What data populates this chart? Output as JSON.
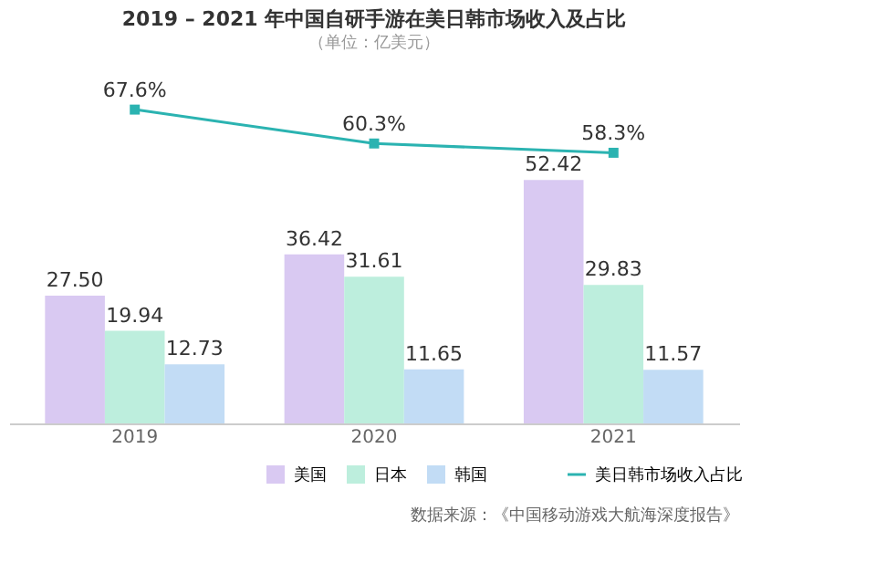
{
  "chart_data": {
    "type": "bar",
    "title": "2019 – 2021 年中国自研手游在美日韩市场收入及占比",
    "subtitle": "（单位：亿美元）",
    "categories": [
      "2019",
      "2020",
      "2021"
    ],
    "series": [
      {
        "name": "美国",
        "color": "#d9c9f2",
        "values": [
          27.5,
          36.42,
          52.42
        ],
        "value_labels": [
          "27.50",
          "36.42",
          "52.42"
        ]
      },
      {
        "name": "日本",
        "color": "#bdeedd",
        "values": [
          19.94,
          31.61,
          29.83
        ],
        "value_labels": [
          "19.94",
          "31.61",
          "29.83"
        ]
      },
      {
        "name": "韩国",
        "color": "#c2dcf5",
        "values": [
          12.73,
          11.65,
          11.57
        ],
        "value_labels": [
          "12.73",
          "11.65",
          "11.57"
        ]
      },
      {
        "name": "美日韩市场收入占比",
        "color": "#2bb3b1",
        "type": "line",
        "marker": "square",
        "values": [
          67.6,
          60.3,
          58.3
        ],
        "value_labels": [
          "67.6%",
          "60.3%",
          "58.3%"
        ]
      }
    ],
    "tick_labels": "x",
    "grid": false,
    "legend": "bottom right",
    "annotations": [
      "数据来源：《中国移动游戏大航海深度报告》"
    ]
  }
}
